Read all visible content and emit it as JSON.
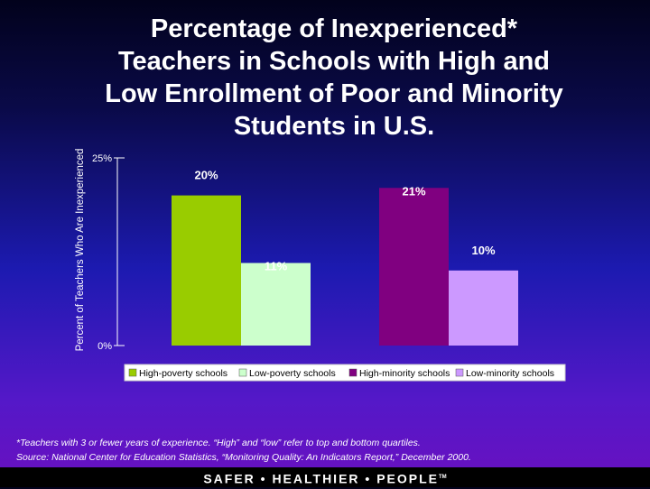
{
  "chart_data": {
    "type": "bar",
    "title": "Percentage of Inexperienced* Teachers in Schools with High and Low Enrollment of Poor and Minority Students in U.S.",
    "title_lines": [
      "Percentage of Inexperienced*",
      "Teachers in Schools with High and",
      "Low Enrollment of Poor and Minority",
      "Students in U.S."
    ],
    "ylabel": "Percent of Teachers Who Are Inexperienced",
    "xlabel": "",
    "ylim": [
      0,
      25
    ],
    "yticks": [
      "0%",
      "25%"
    ],
    "grid": false,
    "legend_position": "bottom",
    "series": [
      {
        "name": "High-poverty schools",
        "value": 20,
        "label": "20%",
        "color": "#99cc00"
      },
      {
        "name": "Low-poverty schools",
        "value": 11,
        "label": "11%",
        "color": "#ccffcc"
      },
      {
        "name": "High-minority schools",
        "value": 21,
        "label": "21%",
        "color": "#800080"
      },
      {
        "name": "Low-minority schools",
        "value": 10,
        "label": "10%",
        "color": "#cc99ff"
      }
    ],
    "groups": [
      [
        0,
        1
      ],
      [
        2,
        3
      ]
    ]
  },
  "footnote": {
    "line1": "*Teachers with 3 or fewer years of experience. “High” and “low” refer to top and bottom quartiles.",
    "line2": "Source: National Center for Education Statistics, “Monitoring Quality: An Indicators Report,” December 2000."
  },
  "footer": {
    "text": "SAFER • HEALTHIER • PEOPLE",
    "tm": "TM"
  }
}
